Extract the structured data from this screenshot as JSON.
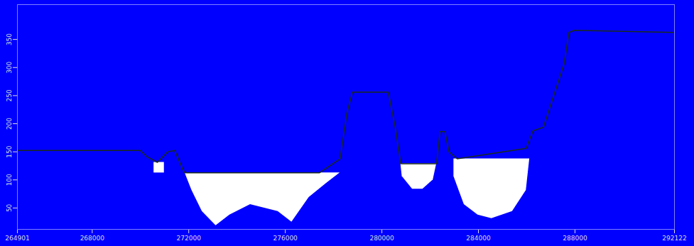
{
  "chart_data": {
    "type": "area",
    "xlim": [
      264901,
      292122
    ],
    "xticks": [
      264901,
      268000,
      272000,
      276000,
      280000,
      284000,
      288000,
      292122
    ],
    "ylim": [
      12,
      412
    ],
    "yticks": [
      50,
      100,
      150,
      200,
      250,
      300,
      350
    ],
    "tick_labels": true,
    "grid": false,
    "series": [
      {
        "type": "line",
        "color": "#1a2a1a",
        "x": [
          264901,
          269985,
          270270,
          270699,
          271127,
          271413,
          271755,
          271841,
          277410,
          278267,
          278553,
          278781,
          280266,
          280552,
          280781,
          282266,
          282409,
          282609,
          282780,
          283123,
          285979,
          286264,
          286693,
          286979,
          287264,
          287550,
          287750,
          287978,
          292122
        ],
        "values": [
          152.5,
          152.5,
          141.25,
          131.25,
          150,
          152.5,
          118.75,
          112.5,
          112.5,
          137.5,
          218.75,
          256.25,
          256.25,
          193.75,
          128.75,
          128.75,
          186.25,
          186.25,
          150,
          137.5,
          156.25,
          187.5,
          193.75,
          231.25,
          268.75,
          306.25,
          362.5,
          366.25,
          362.5
        ]
      }
    ],
    "lakes": [
      {
        "color": "#ffffff",
        "x": [
          270556,
          270699,
          270985
        ],
        "top": [
          131.25,
          131.25,
          131.25
        ],
        "bottom": [
          112.5,
          112.5,
          112.5
        ]
      },
      {
        "color": "#ffffff",
        "x": [
          271841,
          272127,
          272555,
          273126,
          273697,
          274554,
          275697,
          276268,
          276982,
          277696,
          278267
        ],
        "top": [
          112.5,
          112.5,
          112.5,
          112.5,
          112.5,
          112.5,
          112.5,
          112.5,
          112.5,
          112.5,
          112.5
        ],
        "bottom": [
          112.5,
          81.25,
          43.75,
          18.75,
          37.5,
          56.25,
          43.75,
          25,
          68.75,
          93.75,
          112.5
        ]
      },
      {
        "color": "#ffffff",
        "x": [
          280781,
          280838,
          281266,
          281695,
          282123,
          282266
        ],
        "top": [
          128.75,
          128.75,
          128.75,
          128.75,
          128.75,
          128.75
        ],
        "bottom": [
          128.75,
          106.25,
          83.75,
          83.75,
          100,
          128.75
        ]
      },
      {
        "color": "#ffffff",
        "x": [
          282980,
          283409,
          283980,
          284551,
          285408,
          285979,
          286122
        ],
        "top": [
          137.5,
          137.5,
          137.5,
          137.5,
          137.5,
          137.5,
          137.5
        ],
        "bottom": [
          106.25,
          56.25,
          37.5,
          31.25,
          43.75,
          81.25,
          137.5
        ]
      }
    ]
  }
}
